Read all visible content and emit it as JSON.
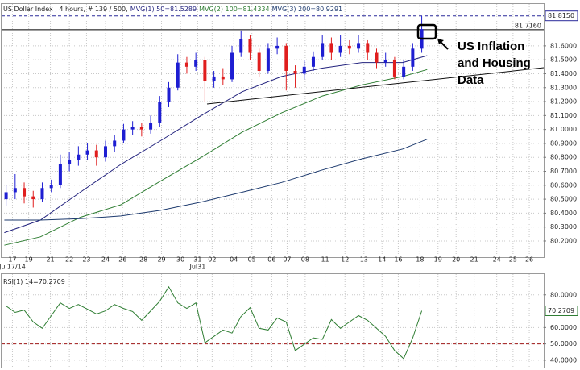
{
  "chart_data": [
    {
      "type": "candlestick",
      "title": "US Dollar Index , 4 hours, # 139 / 500,",
      "x": [
        0.5,
        1.5,
        2.5,
        3.5,
        4.5,
        5.5,
        6.5,
        7.5,
        8.5,
        9.5,
        10.5,
        11.5,
        12.5,
        13.5,
        14.5,
        15.5,
        16.5,
        17.5,
        18.5,
        19.5,
        20.5,
        21.5,
        22.5,
        23.5,
        24.5,
        25.5,
        26.5,
        27.5,
        28.5,
        29.5,
        30.5,
        31.5,
        32.5,
        33.5,
        34.5,
        35.5,
        36.5,
        37.5,
        38.5,
        39.5,
        40.5,
        41.5,
        42.5,
        43.5,
        44.5,
        45.5,
        46.5
      ],
      "open": [
        80.5,
        80.55,
        80.58,
        80.52,
        80.5,
        80.58,
        80.6,
        80.75,
        80.78,
        80.82,
        80.85,
        80.8,
        80.88,
        80.92,
        81.0,
        81.02,
        81.0,
        81.05,
        81.2,
        81.3,
        81.48,
        81.45,
        81.5,
        81.35,
        81.38,
        81.36,
        81.55,
        81.65,
        81.55,
        81.42,
        81.58,
        81.6,
        81.42,
        81.4,
        81.45,
        81.52,
        81.62,
        81.55,
        81.6,
        81.58,
        81.62,
        81.55,
        81.48,
        81.5,
        81.38,
        81.45,
        81.58
      ],
      "high": [
        80.6,
        80.68,
        80.62,
        80.56,
        80.62,
        80.64,
        80.82,
        80.84,
        80.88,
        80.9,
        80.89,
        80.92,
        80.96,
        81.04,
        81.06,
        81.05,
        81.1,
        81.24,
        81.34,
        81.54,
        81.52,
        81.55,
        81.52,
        81.42,
        81.44,
        81.6,
        81.71,
        81.68,
        81.58,
        81.62,
        81.66,
        81.62,
        81.46,
        81.5,
        81.56,
        81.68,
        81.66,
        81.68,
        81.64,
        81.68,
        81.64,
        81.58,
        81.55,
        81.52,
        81.5,
        81.62,
        81.815
      ],
      "low": [
        80.45,
        80.5,
        80.47,
        80.44,
        80.48,
        80.55,
        80.58,
        80.7,
        80.74,
        80.78,
        80.74,
        80.77,
        80.84,
        80.9,
        80.96,
        80.95,
        80.97,
        81.02,
        81.16,
        81.28,
        81.4,
        81.42,
        81.2,
        81.3,
        81.32,
        81.34,
        81.52,
        81.5,
        81.38,
        81.4,
        81.54,
        81.28,
        81.3,
        81.36,
        81.42,
        81.5,
        81.5,
        81.52,
        81.54,
        81.55,
        81.5,
        81.44,
        81.45,
        81.36,
        81.36,
        81.42,
        81.55
      ],
      "close": [
        80.55,
        80.58,
        80.52,
        80.5,
        80.58,
        80.6,
        80.75,
        80.78,
        80.82,
        80.85,
        80.8,
        80.88,
        80.92,
        81.0,
        81.02,
        81.0,
        81.05,
        81.2,
        81.3,
        81.48,
        81.45,
        81.5,
        81.35,
        81.38,
        81.36,
        81.55,
        81.65,
        81.55,
        81.42,
        81.58,
        81.6,
        81.42,
        81.4,
        81.45,
        81.52,
        81.62,
        81.55,
        81.6,
        81.58,
        81.62,
        81.55,
        81.48,
        81.5,
        81.38,
        81.45,
        81.58,
        81.72
      ],
      "up_color": "#1e1ed2",
      "down_color": "#e01e1e",
      "series": [
        {
          "name": "MVG(1) 50=81.5289",
          "color": "#23237e",
          "x": [
            0.3,
            4.3,
            8.7,
            13.2,
            17.6,
            22.1,
            26.6,
            31,
            35.5,
            39.9,
            44.4,
            47.1
          ],
          "values": [
            80.26,
            80.35,
            80.55,
            80.75,
            80.92,
            81.1,
            81.27,
            81.38,
            81.44,
            81.48,
            81.48,
            81.53
          ]
        },
        {
          "name": "MVG(2) 100=81.4334",
          "color": "#2e7d32",
          "x": [
            0.3,
            4.3,
            8.7,
            13.2,
            17.6,
            22.1,
            26.6,
            31,
            35.5,
            39.9,
            44.4,
            47.1
          ],
          "values": [
            80.17,
            80.23,
            80.37,
            80.46,
            80.63,
            80.8,
            80.98,
            81.12,
            81.24,
            81.32,
            81.38,
            81.43
          ]
        },
        {
          "name": "MVG(3) 200=80.9291",
          "color": "#1d3a6e",
          "x": [
            0.3,
            4.3,
            8.7,
            13.2,
            17.6,
            22.1,
            26.6,
            31,
            35.5,
            39.9,
            44.4,
            47.1
          ],
          "values": [
            80.35,
            80.35,
            80.36,
            80.38,
            80.42,
            80.48,
            80.55,
            80.62,
            80.71,
            80.79,
            80.86,
            80.93
          ]
        }
      ],
      "xlim": [
        0,
        60
      ],
      "ylim": [
        80.09,
        81.9
      ],
      "yticks": [
        {
          "value": 80.2,
          "label": "80.2000"
        },
        {
          "value": 80.3,
          "label": "80.3000"
        },
        {
          "value": 80.4,
          "label": "80.4000"
        },
        {
          "value": 80.5,
          "label": "80.5000"
        },
        {
          "value": 80.6,
          "label": "80.6000"
        },
        {
          "value": 80.7,
          "label": "80.7000"
        },
        {
          "value": 80.8,
          "label": "80.8000"
        },
        {
          "value": 80.9,
          "label": "80.9000"
        },
        {
          "value": 81.0,
          "label": "81.0000"
        },
        {
          "value": 81.1,
          "label": "81.1000"
        },
        {
          "value": 81.2,
          "label": "81.2000"
        },
        {
          "value": 81.3,
          "label": "81.3000"
        },
        {
          "value": 81.4,
          "label": "81.4000"
        },
        {
          "value": 81.5,
          "label": "81.5000"
        },
        {
          "value": 81.6,
          "label": "81.6000"
        }
      ],
      "xticks": [
        {
          "value": 1.2,
          "label": "17"
        },
        {
          "value": 3,
          "label": "19"
        },
        {
          "value": 5.4,
          "label": "21"
        },
        {
          "value": 7.5,
          "label": "22"
        },
        {
          "value": 9.4,
          "label": "23"
        },
        {
          "value": 11.5,
          "label": "24"
        },
        {
          "value": 13.4,
          "label": "26"
        },
        {
          "value": 15.7,
          "label": "28"
        },
        {
          "value": 17.7,
          "label": "29"
        },
        {
          "value": 19.8,
          "label": "30"
        },
        {
          "value": 21.7,
          "label": "31"
        },
        {
          "value": 23.3,
          "label": "02"
        },
        {
          "value": 25.7,
          "label": "04"
        },
        {
          "value": 27.7,
          "label": "05"
        },
        {
          "value": 29.9,
          "label": "06"
        },
        {
          "value": 31.6,
          "label": "07"
        },
        {
          "value": 33.6,
          "label": "08"
        },
        {
          "value": 35.8,
          "label": "11"
        },
        {
          "value": 38,
          "label": "12"
        },
        {
          "value": 40.1,
          "label": "13"
        },
        {
          "value": 42.1,
          "label": "14"
        },
        {
          "value": 43.9,
          "label": "16"
        },
        {
          "value": 46.3,
          "label": "18"
        },
        {
          "value": 48.3,
          "label": "19"
        },
        {
          "value": 50.3,
          "label": "20"
        },
        {
          "value": 52.3,
          "label": "21"
        },
        {
          "value": 54.8,
          "label": "24"
        },
        {
          "value": 56.6,
          "label": "25"
        },
        {
          "value": 58.4,
          "label": "26"
        }
      ],
      "x_period_labels": [
        {
          "value": 1.2,
          "label": "Jul17/14"
        },
        {
          "value": 21.7,
          "label": "Jul31"
        }
      ],
      "hlines": [
        {
          "value": 81.815,
          "label": "81.8150",
          "color": "#2a2a9a",
          "dashed": true
        },
        {
          "value": 81.716,
          "label": "81.7160",
          "color": "#000000",
          "dashed": false
        }
      ],
      "grid": true,
      "annotation": [
        "US Inflation",
        "and Housing",
        "Data"
      ]
    },
    {
      "type": "line",
      "title": "RSI(1) 14=70.2709",
      "x": [
        0.5,
        1.5,
        2.5,
        3.5,
        4.5,
        5.5,
        6.5,
        7.5,
        8.5,
        9.5,
        10.5,
        11.5,
        12.5,
        13.5,
        14.5,
        15.5,
        16.5,
        17.5,
        18.5,
        19.5,
        20.5,
        21.5,
        22.5,
        23.5,
        24.5,
        25.5,
        26.5,
        27.5,
        28.5,
        29.5,
        30.5,
        31.5,
        32.5,
        33.5,
        34.5,
        35.5,
        36.5,
        37.5,
        38.5,
        39.5,
        40.5,
        41.5,
        42.5,
        43.5,
        44.5,
        45.5,
        46.5
      ],
      "values": [
        73.2,
        69.3,
        70.7,
        63.4,
        59.5,
        67.3,
        75.1,
        71.7,
        74.1,
        71.2,
        68.3,
        70.2,
        74.1,
        71.7,
        69.8,
        64.4,
        70.2,
        76.1,
        84.9,
        75.1,
        71.7,
        75.1,
        50.7,
        54.6,
        58.5,
        56.6,
        66.8,
        72.2,
        59.5,
        58.5,
        65.9,
        63.4,
        45.9,
        49.8,
        53.7,
        52.7,
        64.9,
        59.5,
        63.4,
        67.3,
        64.4,
        59.5,
        54.6,
        45.9,
        41,
        53.7,
        70.2709
      ],
      "color": "#2e7d32",
      "xlim": [
        0,
        60
      ],
      "ylim": [
        36,
        92.7
      ],
      "yticks": [
        {
          "value": 40,
          "label": "40.0000"
        },
        {
          "value": 50,
          "label": "50.0000"
        },
        {
          "value": 60,
          "label": "60.0000"
        },
        {
          "value": 80,
          "label": "80.0000"
        }
      ],
      "hlines": [
        {
          "value": 50,
          "color": "#a01818",
          "dashed": true
        },
        {
          "value": 70.2709,
          "label": "70.2709",
          "color": "#2e7d32",
          "dashed": false
        }
      ],
      "grid": true
    }
  ]
}
